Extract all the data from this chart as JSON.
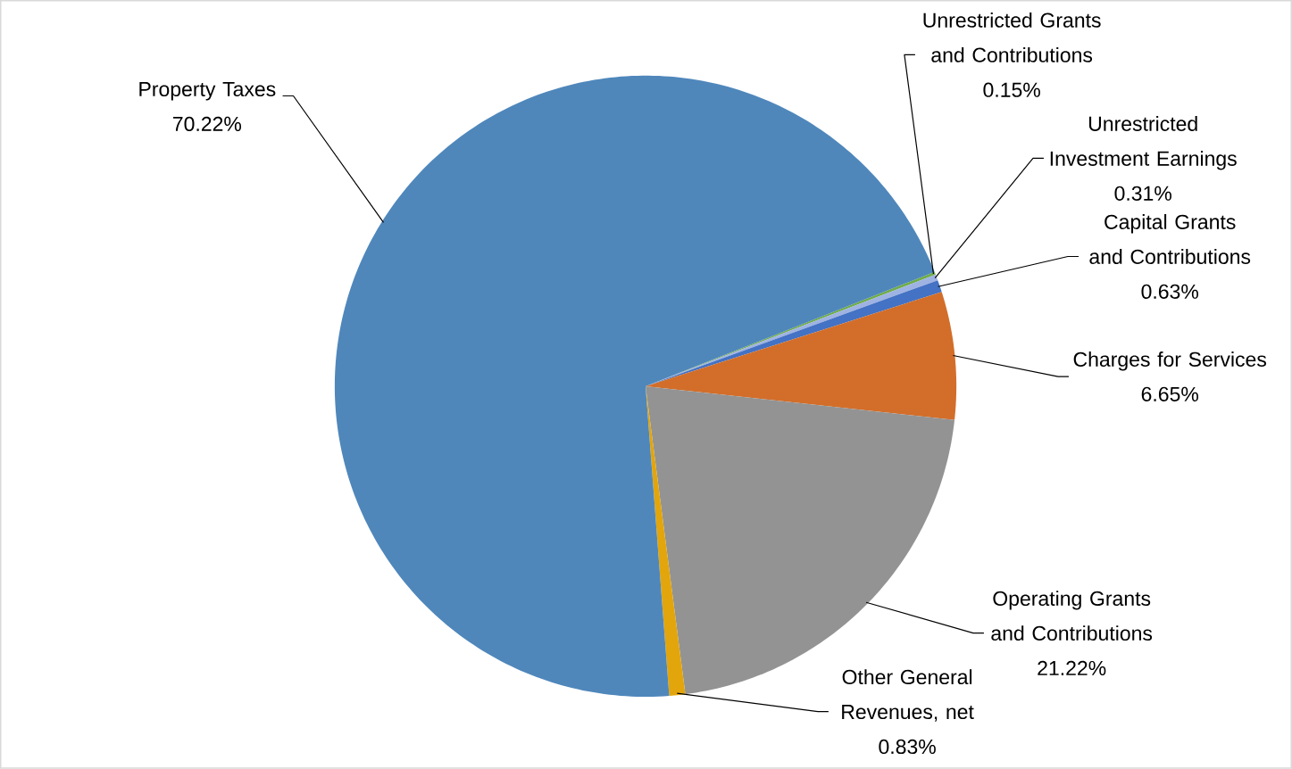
{
  "chart_data": {
    "type": "pie",
    "categories": [
      "Unrestricted Grants and Contributions",
      "Unrestricted Investment Earnings",
      "Capital Grants and Contributions",
      "Charges for Services",
      "Operating Grants and Contributions",
      "Other General Revenues, net",
      "Property Taxes"
    ],
    "values": [
      0.15,
      0.31,
      0.63,
      6.65,
      21.22,
      0.83,
      70.22
    ],
    "value_labels": [
      "0.15%",
      "0.31%",
      "0.63%",
      "6.65%",
      "21.22%",
      "0.83%",
      "70.22%"
    ],
    "colors": [
      "#70ad47",
      "#9fb3e3",
      "#4472c4",
      "#d26e2a",
      "#939393",
      "#e2a50c",
      "#4f87bb"
    ]
  }
}
